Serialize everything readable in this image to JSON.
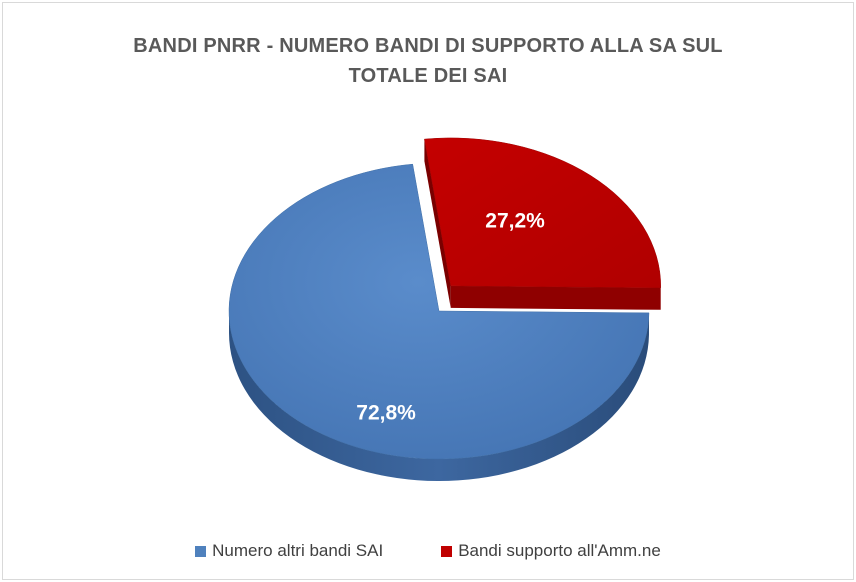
{
  "chart_data": {
    "type": "pie",
    "title_lines": [
      "BANDI PNRR - NUMERO BANDI DI SUPPORTO ALLA SA SUL",
      "TOTALE DEI SAI"
    ],
    "slices": [
      {
        "name": "Numero altri bandi SAI",
        "value": 72.8,
        "label": "72,8%",
        "color": "#4f81bd",
        "exploded": false
      },
      {
        "name": "Bandi supporto all'Amm.ne",
        "value": 27.2,
        "label": "27,2%",
        "color": "#c00000",
        "exploded": true
      }
    ],
    "legend_position": "bottom",
    "style": "3d-exploded"
  }
}
